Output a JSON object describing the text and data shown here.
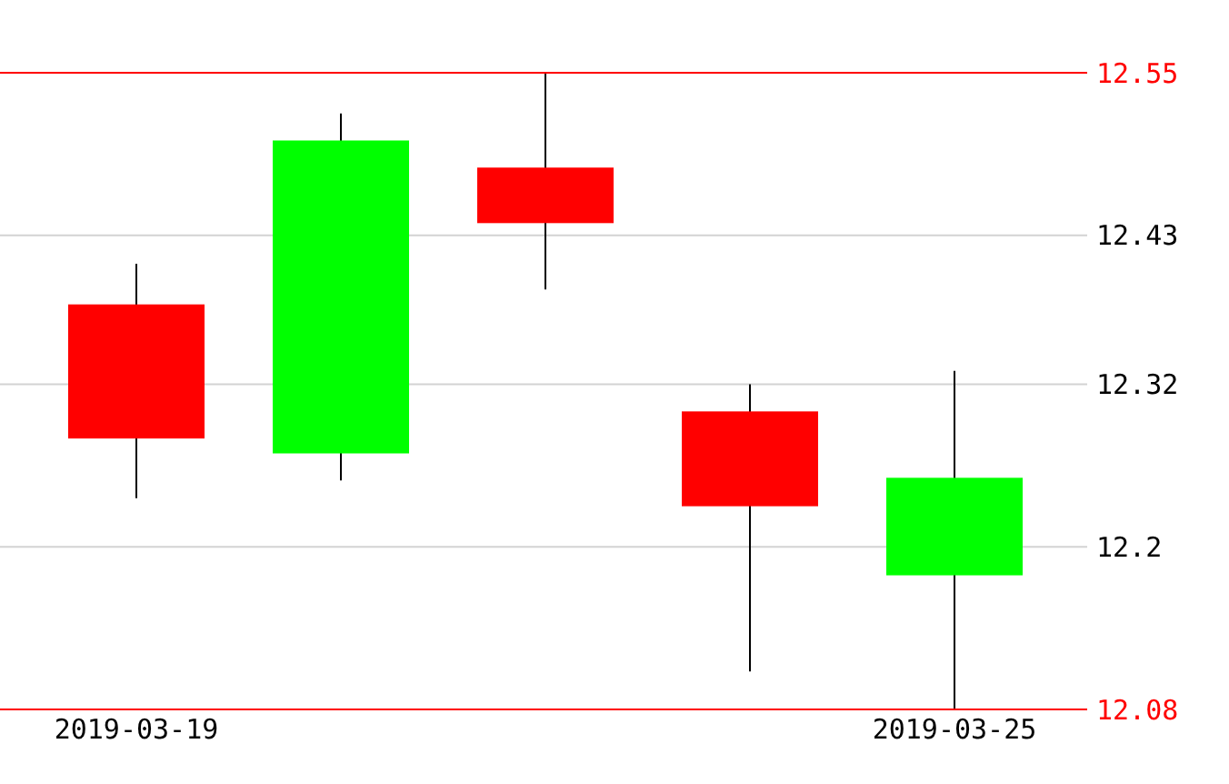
{
  "chart_data": {
    "type": "candlestick",
    "categories": [
      "2019-03-19",
      null,
      null,
      null,
      "2019-03-25"
    ],
    "ohlc": [
      [
        12.379,
        12.409,
        12.236,
        12.28
      ],
      [
        12.269,
        12.52,
        12.249,
        12.5
      ],
      [
        12.48,
        12.55,
        12.39,
        12.439
      ],
      [
        12.3,
        12.32,
        12.108,
        12.23
      ],
      [
        12.179,
        12.33,
        12.08,
        12.251
      ]
    ],
    "colors": [
      "#ff0000",
      "#00ff00",
      "#ff0000",
      "#ff0000",
      "#00ff00"
    ],
    "ylim": [
      12.08,
      12.55
    ],
    "yticks": [
      12.08,
      12.2,
      12.32,
      12.43,
      12.55
    ],
    "grid": "y"
  }
}
